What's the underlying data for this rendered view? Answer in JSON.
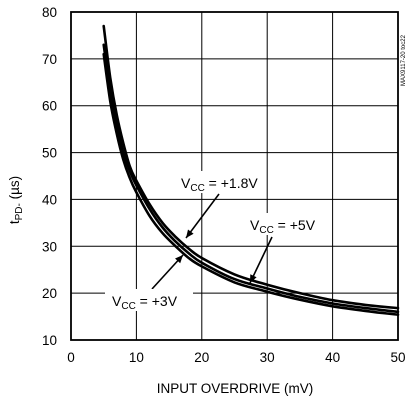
{
  "chart_data": {
    "type": "line",
    "xlabel": "INPUT OVERDRIVE (mV)",
    "ylabel": {
      "main": "t",
      "sub": "PD-",
      "unit": " (µs)"
    },
    "figure_id": "MAX9117-20 toc22",
    "xlim": [
      0,
      50
    ],
    "ylim": [
      10,
      80
    ],
    "x_ticks": [
      "0",
      "10",
      "20",
      "30",
      "40",
      "50"
    ],
    "y_ticks": [
      "10",
      "20",
      "30",
      "40",
      "50",
      "60",
      "70",
      "80"
    ],
    "grid": true,
    "series": [
      {
        "x": [
          5,
          6,
          7,
          8,
          9,
          10,
          12,
          14,
          16,
          18,
          20,
          25,
          30,
          35,
          40,
          45,
          50
        ],
        "y": [
          77,
          66,
          58,
          52,
          47,
          44,
          39,
          35,
          32,
          29.5,
          27.5,
          24,
          21.8,
          20,
          18.5,
          17.5,
          16.8
        ]
      },
      {
        "x": [
          5,
          6,
          7,
          8,
          9,
          10,
          12,
          14,
          16,
          18,
          20,
          25,
          30,
          35,
          40,
          45,
          50
        ],
        "y": [
          73,
          63,
          56,
          50,
          46,
          43,
          38,
          34,
          31,
          28.5,
          26.5,
          23,
          21,
          19.2,
          17.8,
          16.8,
          16
        ]
      },
      {
        "x": [
          5,
          6,
          7,
          8,
          9,
          10,
          12,
          14,
          16,
          18,
          20,
          25,
          30,
          35,
          40,
          45,
          50
        ],
        "y": [
          71,
          61,
          54,
          48.5,
          44.5,
          41.5,
          36.5,
          32.8,
          30,
          27.5,
          25.7,
          22.3,
          20.3,
          18.6,
          17.2,
          16.2,
          15.4
        ]
      }
    ],
    "annotations": [
      {
        "main": "V",
        "sub": "CC",
        "rest": " = +1.8V"
      },
      {
        "main": "V",
        "sub": "CC",
        "rest": " = +5V"
      },
      {
        "main": "V",
        "sub": "CC",
        "rest": " = +3V"
      }
    ]
  }
}
